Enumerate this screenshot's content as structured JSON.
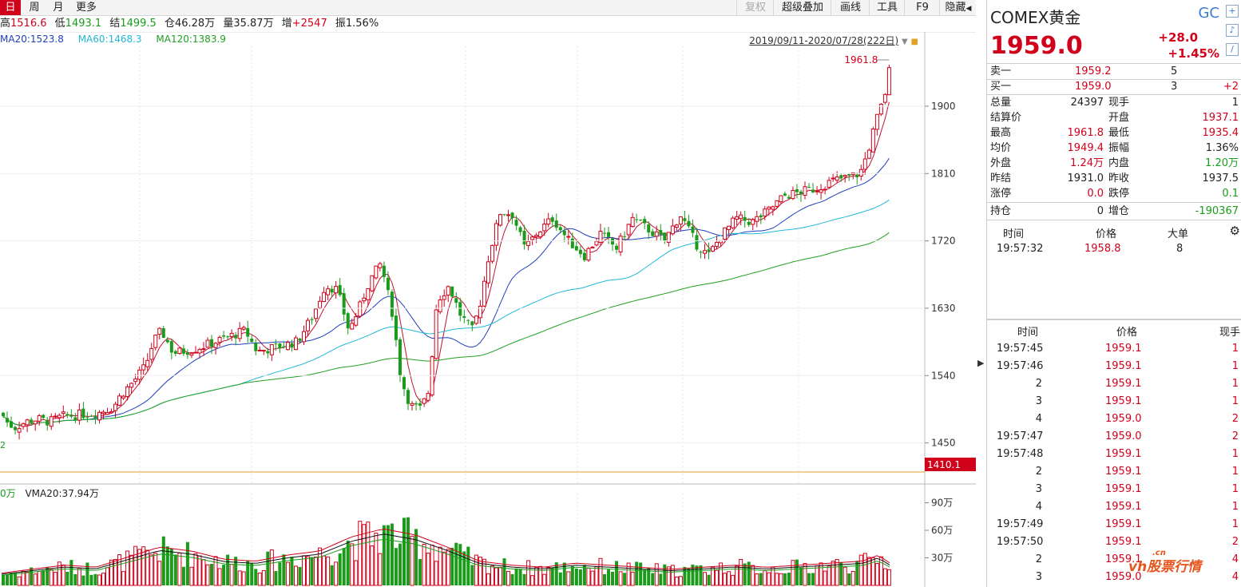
{
  "toolbar": {
    "periods": [
      "日",
      "周",
      "月",
      "更多"
    ],
    "buttons": [
      "复权",
      "超级叠加",
      "画线",
      "工具",
      "F9",
      "隐藏"
    ]
  },
  "quote_line": {
    "high_label": "高",
    "high": "1516.6",
    "low_label": "低",
    "low": "1493.1",
    "close_label": "结",
    "close": "1499.5",
    "oi_label": "仓",
    "oi": "46.28万",
    "vol_label": "量",
    "vol": "35.87万",
    "inc_label": "增",
    "inc": "+2547",
    "amp_label": "振",
    "amp": "1.56%"
  },
  "ma_legend": {
    "ma20": "MA20:1523.8",
    "ma60": "MA60:1468.3",
    "ma120": "MA120:1383.9"
  },
  "range_label": "2019/09/11-2020/07/28(222日)",
  "volume_legend": {
    "left_fragment": "0万",
    "vma20": "VMA20:37.94万"
  },
  "price_axis": {
    "ticks": [
      "1900",
      "1810",
      "1720",
      "1630",
      "1540",
      "1450"
    ],
    "low_marker": "1410.1",
    "high_marker": "1961.8",
    "left_fragment": "2"
  },
  "volume_axis": {
    "ticks": [
      "90万",
      "60万",
      "30万"
    ]
  },
  "colors": {
    "up": "#d0021b",
    "down": "#1a9c1a",
    "ma20": "#1f3fbf",
    "ma60": "#20b8d8",
    "ma120": "#20a020",
    "ma5": "#c01030",
    "accent": "#3b7bd3"
  },
  "chart_data": {
    "type": "candlestick",
    "title": "",
    "xlabel": "",
    "ylabel": "",
    "ylim": [
      1410.1,
      1980
    ],
    "date_range": [
      "2019/09/11",
      "2020/07/28"
    ],
    "session_count": 222,
    "series": [
      {
        "name": "MA20",
        "last": 1523.8
      },
      {
        "name": "MA60",
        "last": 1468.3
      },
      {
        "name": "MA120",
        "last": 1383.9
      }
    ],
    "price_path": [
      [
        0,
        1490
      ],
      [
        6,
        1478
      ],
      [
        16,
        1470
      ],
      [
        30,
        1478
      ],
      [
        45,
        1482
      ],
      [
        60,
        1478
      ],
      [
        75,
        1485
      ],
      [
        100,
        1488
      ],
      [
        120,
        1490
      ],
      [
        140,
        1498
      ],
      [
        150,
        1515
      ],
      [
        165,
        1532
      ],
      [
        180,
        1552
      ],
      [
        190,
        1585
      ],
      [
        200,
        1600
      ],
      [
        215,
        1570
      ],
      [
        240,
        1575
      ],
      [
        260,
        1582
      ],
      [
        285,
        1592
      ],
      [
        305,
        1600
      ],
      [
        320,
        1572
      ],
      [
        345,
        1578
      ],
      [
        370,
        1585
      ],
      [
        390,
        1620
      ],
      [
        405,
        1660
      ],
      [
        420,
        1655
      ],
      [
        435,
        1600
      ],
      [
        448,
        1630
      ],
      [
        460,
        1665
      ],
      [
        475,
        1690
      ],
      [
        490,
        1620
      ],
      [
        500,
        1535
      ],
      [
        512,
        1500
      ],
      [
        525,
        1495
      ],
      [
        535,
        1520
      ],
      [
        545,
        1640
      ],
      [
        560,
        1660
      ],
      [
        575,
        1620
      ],
      [
        590,
        1600
      ],
      [
        600,
        1640
      ],
      [
        610,
        1700
      ],
      [
        625,
        1760
      ],
      [
        640,
        1755
      ],
      [
        655,
        1710
      ],
      [
        670,
        1730
      ],
      [
        690,
        1750
      ],
      [
        710,
        1720
      ],
      [
        730,
        1700
      ],
      [
        750,
        1730
      ],
      [
        770,
        1710
      ],
      [
        790,
        1750
      ],
      [
        810,
        1735
      ],
      [
        830,
        1720
      ],
      [
        850,
        1755
      ],
      [
        870,
        1715
      ],
      [
        885,
        1700
      ],
      [
        900,
        1725
      ],
      [
        920,
        1750
      ],
      [
        940,
        1745
      ],
      [
        960,
        1760
      ],
      [
        980,
        1780
      ],
      [
        1000,
        1785
      ],
      [
        1020,
        1790
      ],
      [
        1040,
        1800
      ],
      [
        1060,
        1805
      ],
      [
        1075,
        1810
      ],
      [
        1085,
        1840
      ],
      [
        1095,
        1880
      ],
      [
        1105,
        1910
      ],
      [
        1112,
        1950
      ],
      [
        1118,
        1959
      ]
    ],
    "volume_path": [
      [
        0,
        12
      ],
      [
        40,
        16
      ],
      [
        80,
        20
      ],
      [
        120,
        18
      ],
      [
        160,
        28
      ],
      [
        200,
        38
      ],
      [
        240,
        34
      ],
      [
        280,
        26
      ],
      [
        320,
        24
      ],
      [
        360,
        30
      ],
      [
        400,
        34
      ],
      [
        440,
        48
      ],
      [
        480,
        56
      ],
      [
        520,
        50
      ],
      [
        560,
        38
      ],
      [
        600,
        24
      ],
      [
        640,
        20
      ],
      [
        680,
        18
      ],
      [
        720,
        22
      ],
      [
        760,
        20
      ],
      [
        800,
        18
      ],
      [
        840,
        16
      ],
      [
        880,
        18
      ],
      [
        920,
        20
      ],
      [
        960,
        18
      ],
      [
        1000,
        20
      ],
      [
        1040,
        22
      ],
      [
        1080,
        24
      ],
      [
        1100,
        30
      ],
      [
        1118,
        20
      ]
    ],
    "volume_ylim": [
      0,
      100
    ]
  },
  "right_panel": {
    "name": "COMEX黄金",
    "code": "GC",
    "last": "1959.0",
    "change": "+28.0",
    "change_pct": "+1.45%",
    "sell1": {
      "label": "卖一",
      "price": "1959.2",
      "qty": "5"
    },
    "buy1": {
      "label": "买一",
      "price": "1959.0",
      "qty": "3",
      "chg": "+2"
    },
    "stats": [
      {
        "l1": "总量",
        "v1": "24397",
        "c1": "blk",
        "l2": "现手",
        "v2": "1",
        "c2": "blk"
      },
      {
        "l1": "结算价",
        "v1": "",
        "c1": "blk",
        "l2": "开盘",
        "v2": "1937.1",
        "c2": "up"
      },
      {
        "l1": "最高",
        "v1": "1961.8",
        "c1": "up",
        "l2": "最低",
        "v2": "1935.4",
        "c2": "up"
      },
      {
        "l1": "均价",
        "v1": "1949.4",
        "c1": "up",
        "l2": "振幅",
        "v2": "1.36%",
        "c2": "blk"
      },
      {
        "l1": "外盘",
        "v1": "1.24万",
        "c1": "up",
        "l2": "内盘",
        "v2": "1.20万",
        "c2": "down"
      },
      {
        "l1": "昨结",
        "v1": "1931.0",
        "c1": "blk",
        "l2": "昨收",
        "v2": "1937.5",
        "c2": "blk"
      },
      {
        "l1": "涨停",
        "v1": "0.0",
        "c1": "up",
        "l2": "跌停",
        "v2": "0.1",
        "c2": "down"
      }
    ],
    "oi": {
      "l1": "持仓",
      "v1": "0",
      "l2": "增仓",
      "v2": "-190367"
    },
    "big_trades_header": {
      "time": "时间",
      "price": "价格",
      "size": "大单"
    },
    "big_trades": [
      {
        "time": "19:57:32",
        "price": "1958.8",
        "size": "8"
      }
    ],
    "trades_header": {
      "time": "时间",
      "price": "价格",
      "size": "现手"
    },
    "trades": [
      {
        "time": "19:57:45",
        "price": "1959.1",
        "size": "1"
      },
      {
        "time": "19:57:46",
        "price": "1959.1",
        "size": "1"
      },
      {
        "time": "2",
        "price": "1959.1",
        "size": "1"
      },
      {
        "time": "3",
        "price": "1959.1",
        "size": "1"
      },
      {
        "time": "4",
        "price": "1959.0",
        "size": "2"
      },
      {
        "time": "19:57:47",
        "price": "1959.0",
        "size": "2"
      },
      {
        "time": "19:57:48",
        "price": "1959.1",
        "size": "1"
      },
      {
        "time": "2",
        "price": "1959.1",
        "size": "1"
      },
      {
        "time": "3",
        "price": "1959.1",
        "size": "1"
      },
      {
        "time": "4",
        "price": "1959.1",
        "size": "1"
      },
      {
        "time": "19:57:49",
        "price": "1959.1",
        "size": "1"
      },
      {
        "time": "19:57:50",
        "price": "1959.1",
        "size": "2"
      },
      {
        "time": "2",
        "price": "1959.1",
        "size": "4"
      },
      {
        "time": "3",
        "price": "1959.0",
        "size": "4"
      }
    ],
    "watermark": "vh股票行情",
    "watermark_cn": ".cn"
  }
}
